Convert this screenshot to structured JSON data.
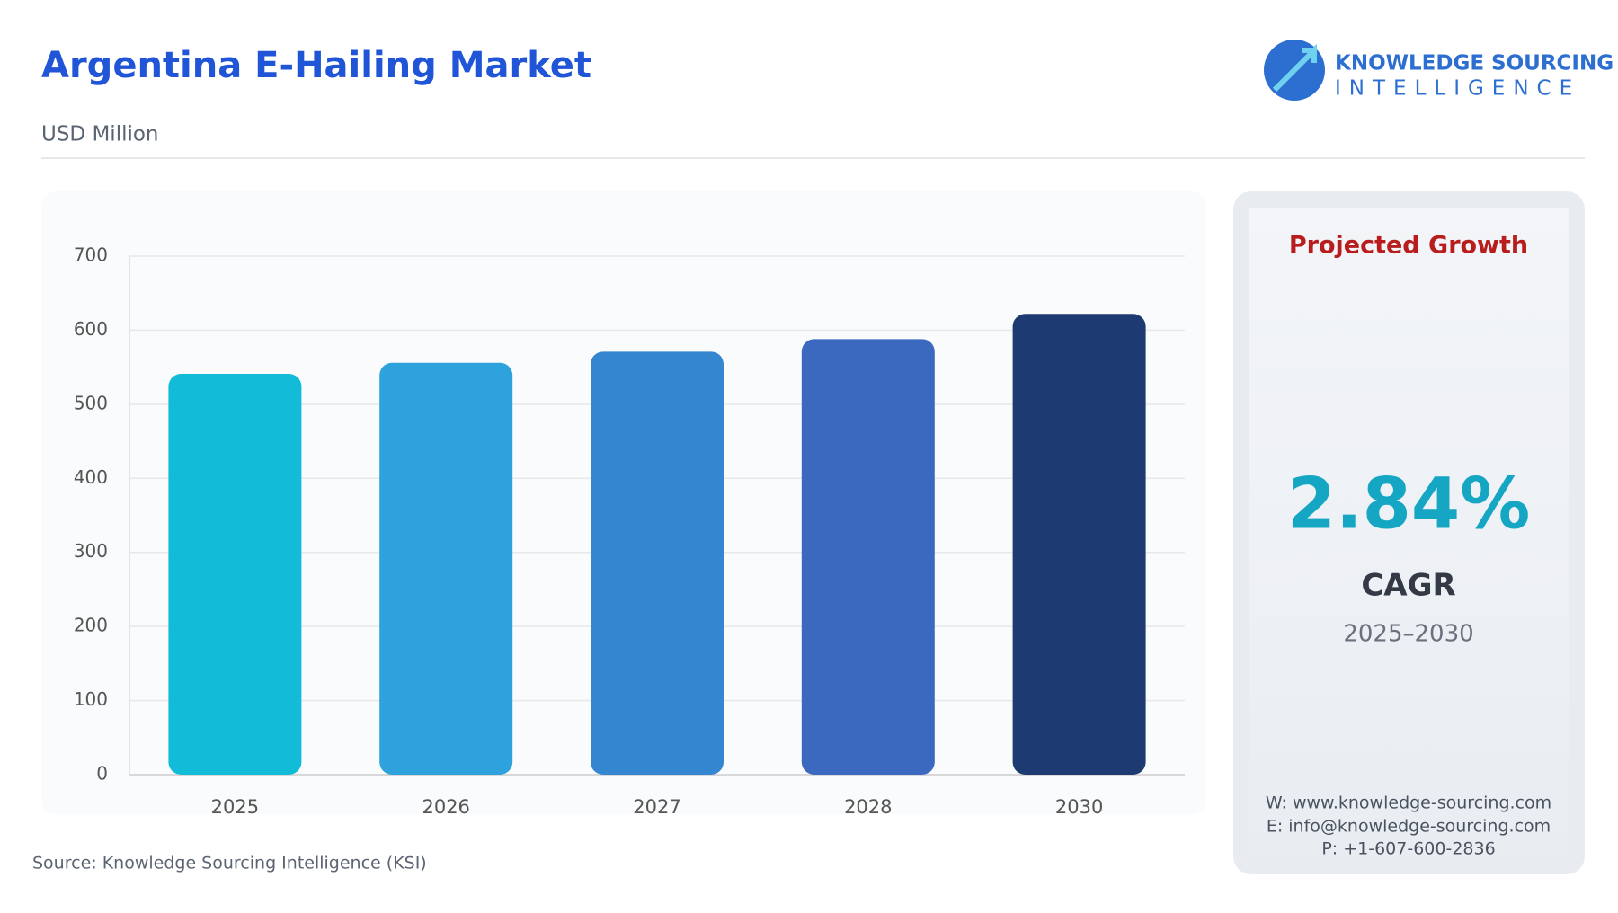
{
  "chart_data": {
    "type": "bar",
    "title": "Argentina E-Hailing Market",
    "subtitle": "USD Million",
    "source": "Source: Knowledge Sourcing Intelligence (KSI)",
    "categories": [
      "2025",
      "2026",
      "2027",
      "2028",
      "2030"
    ],
    "values": [
      541,
      556,
      571,
      588,
      622
    ],
    "colors": [
      "#12bcd8",
      "#2ea2dc",
      "#3586d0",
      "#3a69bf",
      "#1d3b72"
    ],
    "ylim": [
      0,
      700
    ],
    "yticks": [
      0,
      100,
      200,
      300,
      400,
      500,
      600,
      700
    ],
    "grid": true
  },
  "panel": {
    "heading": "Projected Growth",
    "value": "2.84%",
    "label": "CAGR",
    "period": "2025–2030",
    "contacts": [
      "W: www.knowledge-sourcing.com",
      "E: info@knowledge-sourcing.com",
      "P: +1-607-600-2836"
    ]
  },
  "logo": {
    "line1": "KNOWLEDGE SOURCING",
    "line2": "INTELLIGENCE"
  }
}
